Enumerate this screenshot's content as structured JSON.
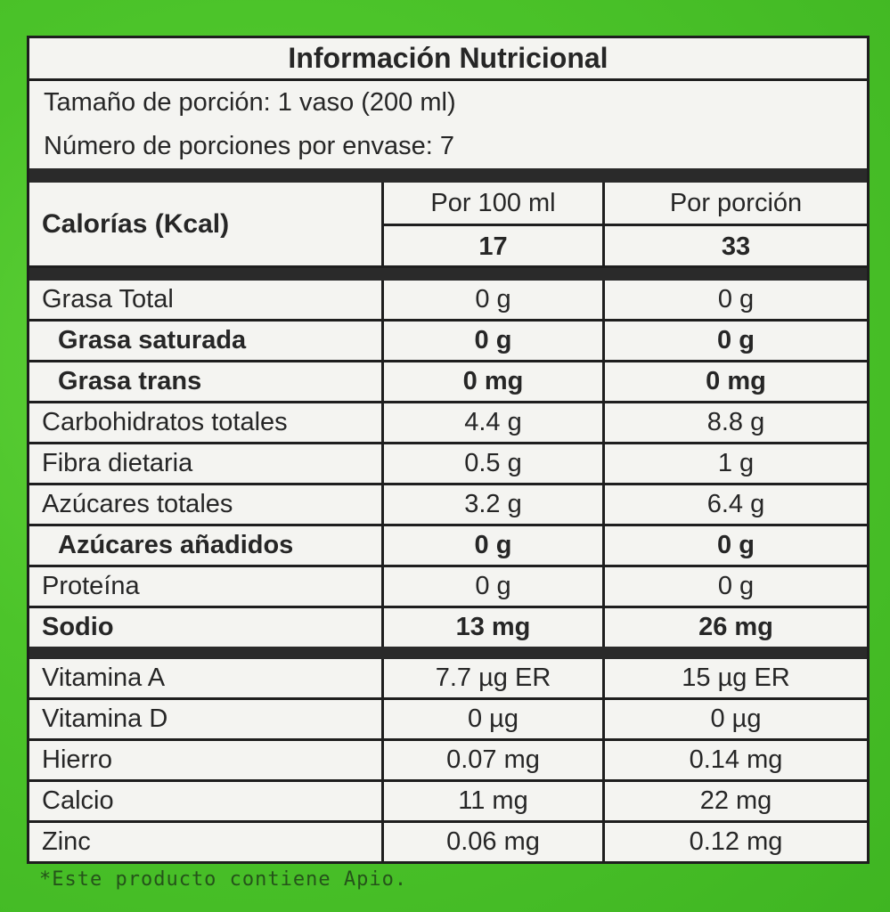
{
  "title": "Información Nutricional",
  "serving_size": "Tamaño de porción: 1 vaso (200 ml)",
  "servings_per_container": "Número de porciones por envase: 7",
  "calories": {
    "label": "Calorías (Kcal)",
    "col_per100_header": "Por 100 ml",
    "col_portion_header": "Por porción",
    "per100": "17",
    "portion": "33"
  },
  "nutrients": [
    {
      "name": "Grasa Total",
      "per100": "0 g",
      "portion": "0 g"
    },
    {
      "name": "Grasa saturada",
      "per100": "0 g",
      "portion": "0 g"
    },
    {
      "name": "Grasa trans",
      "per100": "0 mg",
      "portion": "0 mg"
    },
    {
      "name": "Carbohidratos totales",
      "per100": "4.4 g",
      "portion": "8.8 g"
    },
    {
      "name": "Fibra dietaria",
      "per100": "0.5 g",
      "portion": "1 g"
    },
    {
      "name": "Azúcares totales",
      "per100": "3.2 g",
      "portion": "6.4 g"
    },
    {
      "name": "Azúcares añadidos",
      "per100": "0 g",
      "portion": "0 g"
    },
    {
      "name": "Proteína",
      "per100": "0 g",
      "portion": "0 g"
    },
    {
      "name": "Sodio",
      "per100": "13 mg",
      "portion": "26 mg"
    }
  ],
  "micronutrients": [
    {
      "name": "Vitamina A",
      "per100": "7.7 µg ER",
      "portion": "15 µg ER"
    },
    {
      "name": "Vitamina D",
      "per100": "0 µg",
      "portion": "0 µg"
    },
    {
      "name": "Hierro",
      "per100": "0.07 mg",
      "portion": "0.14 mg"
    },
    {
      "name": "Calcio",
      "per100": "11 mg",
      "portion": "22 mg"
    },
    {
      "name": "Zinc",
      "per100": "0.06 mg",
      "portion": "0.12 mg"
    }
  ],
  "footnote": "*Este producto contiene Apio.",
  "colors": {
    "package_green": "#4cc42a",
    "label_background": "#f4f4f1",
    "rule": "#1e1e1e"
  }
}
